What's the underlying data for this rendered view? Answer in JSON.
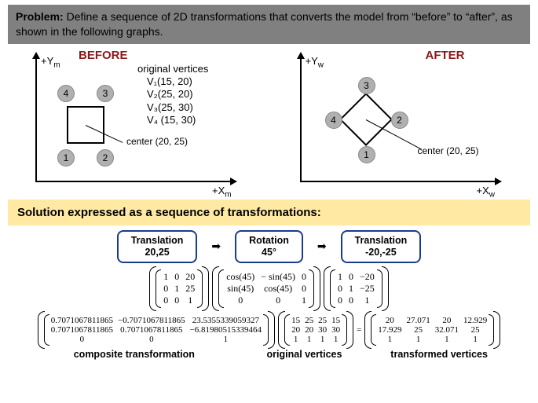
{
  "problem": {
    "label": "Problem:",
    "text": "Define a sequence of 2D transformations that converts the model from “before” to “after”, as shown in the following graphs."
  },
  "before": {
    "title": "BEFORE",
    "y_axis": "+Y",
    "y_sub": "m",
    "x_axis": "+X",
    "x_sub": "m",
    "vertex_header": "original vertices",
    "vertices": {
      "v1": "V₁(15, 20)",
      "v2": "V₂(25, 20)",
      "v3": "V₃(25, 30)",
      "v4": "V₄ (15, 30)"
    },
    "badge1": "1",
    "badge2": "2",
    "badge3": "3",
    "badge4": "4",
    "center": "center (20, 25)"
  },
  "after": {
    "title": "AFTER",
    "y_axis": "+Y",
    "y_sub": "w",
    "x_axis": "+X",
    "x_sub": "w",
    "badge1": "1",
    "badge2": "2",
    "badge3": "3",
    "badge4": "4",
    "center": "center (20, 25)"
  },
  "solution_title": "Solution expressed as a sequence of transformations:",
  "steps": {
    "s1a": "Translation",
    "s1b": "20,25",
    "s2a": "Rotation",
    "s2b": "45°",
    "s3a": "Translation",
    "s3b": "-20,-25"
  },
  "mats": {
    "t1": [
      [
        "1",
        "0",
        "20"
      ],
      [
        "0",
        "1",
        "25"
      ],
      [
        "0",
        "0",
        "1"
      ]
    ],
    "r": [
      [
        "cos(45)",
        "− sin(45)",
        "0"
      ],
      [
        "sin(45)",
        "cos(45)",
        "0"
      ],
      [
        "0",
        "0",
        "1"
      ]
    ],
    "t2": [
      [
        "1",
        "0",
        "−20"
      ],
      [
        "0",
        "1",
        "−25"
      ],
      [
        "0",
        "0",
        "1"
      ]
    ],
    "composite": [
      [
        "0.7071067811865",
        "−0.7071067811865",
        "23.5355339059327"
      ],
      [
        "0.7071067811865",
        "0.7071067811865",
        "−6.81980515339464"
      ],
      [
        "0",
        "0",
        "1"
      ]
    ],
    "orig": [
      [
        "15",
        "25",
        "25",
        "15"
      ],
      [
        "20",
        "20",
        "30",
        "30"
      ],
      [
        "1",
        "1",
        "1",
        "1"
      ]
    ],
    "result": [
      [
        "20",
        "27.071",
        "20",
        "12.929"
      ],
      [
        "17.929",
        "25",
        "32.071",
        "25"
      ],
      [
        "1",
        "1",
        "1",
        "1"
      ]
    ]
  },
  "labels": {
    "composite": "composite transformation",
    "orig": "original vertices",
    "trans": "transformed vertices"
  },
  "eq": "="
}
